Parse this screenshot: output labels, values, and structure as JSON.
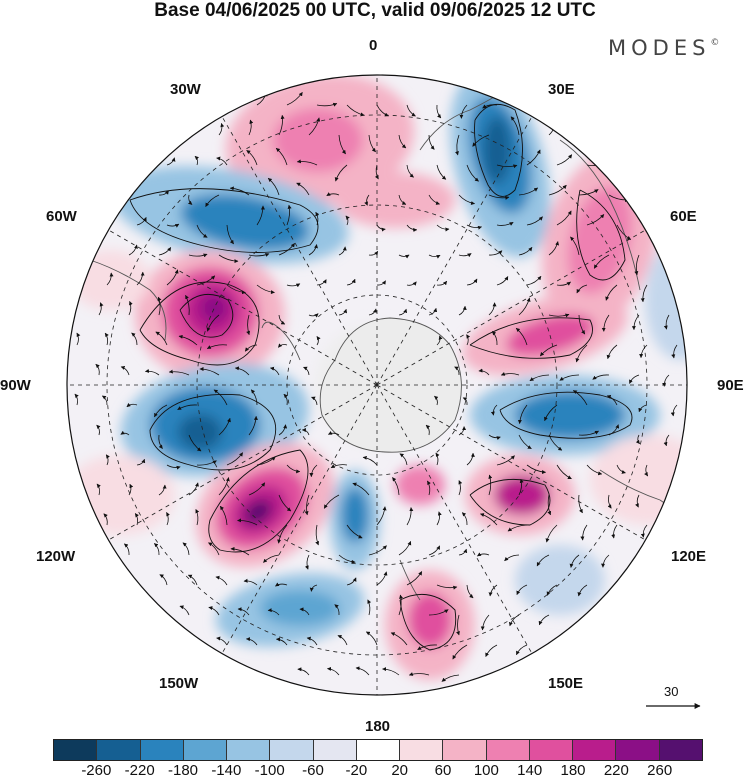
{
  "title": "Base 04/06/2025 00 UTC, valid 09/06/2025 12 UTC",
  "brand": {
    "text": "MODES",
    "mark": "©"
  },
  "map": {
    "projection": "south-polar-stereographic",
    "longitude_labels": {
      "top": "0",
      "bottom": "180",
      "left": "90W",
      "right": "90E",
      "upper_left_inner": "30W",
      "upper_left_outer": "60W",
      "upper_right_inner": "30E",
      "upper_right_outer": "60E",
      "lower_left_outer": "120W",
      "lower_left_inner": "150W",
      "lower_right_outer": "120E",
      "lower_right_inner": "150E"
    },
    "wind_scale": {
      "label": "30"
    },
    "colors": {
      "land_outline": "#555555",
      "grid": "#222222",
      "vector": "#111111",
      "contour": "#111111"
    }
  },
  "colorbar": {
    "colors": [
      "#0d3a5c",
      "#155f92",
      "#2a83bd",
      "#5da5d2",
      "#97c4e3",
      "#c4d7ec",
      "#e4e6f1",
      "#ffffff",
      "#f8dde3",
      "#f4b3c6",
      "#ee80b1",
      "#e0509e",
      "#b91d8c",
      "#8b0f86",
      "#55106f"
    ],
    "tick_labels": [
      "-260",
      "-220",
      "-180",
      "-140",
      "-100",
      "-60",
      "-20",
      "20",
      "60",
      "100",
      "140",
      "180",
      "220",
      "260"
    ]
  }
}
